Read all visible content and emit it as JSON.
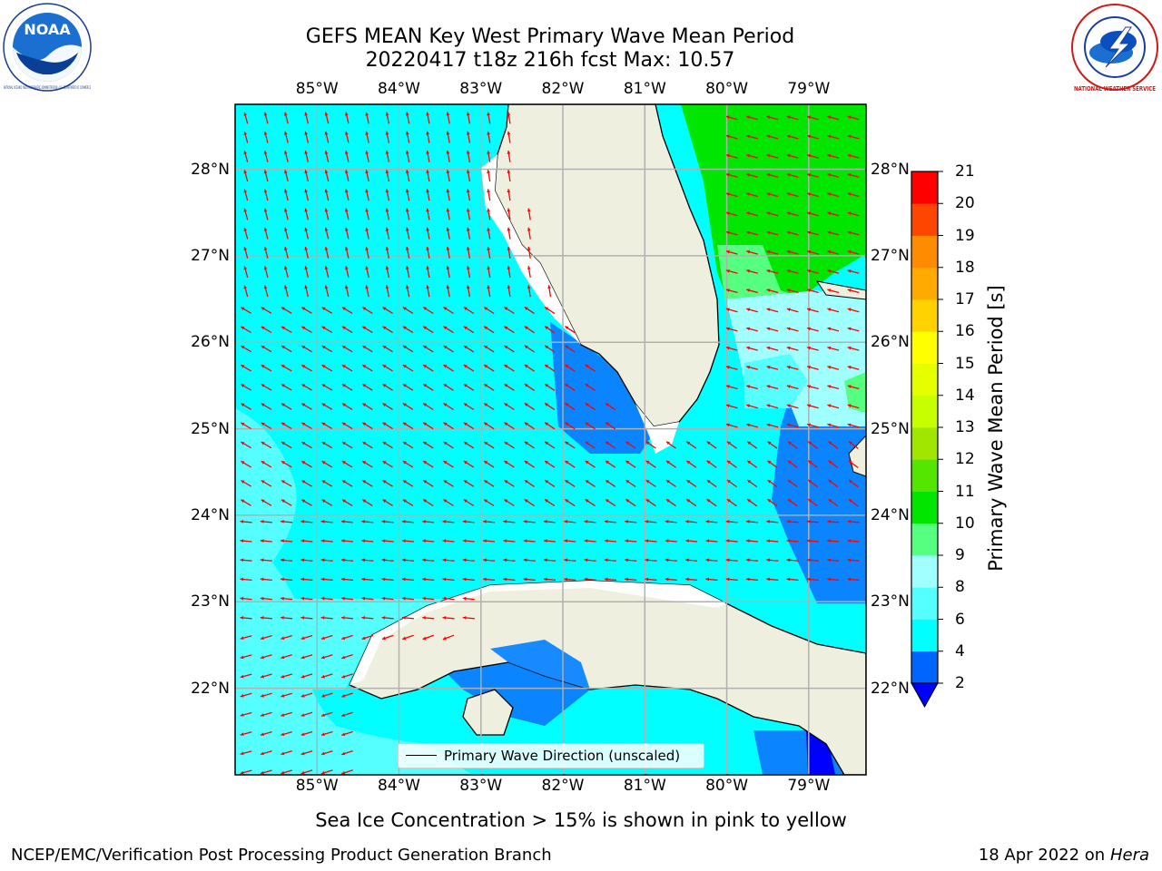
{
  "title_line1": "GEFS MEAN Key West Primary Wave Mean Period",
  "title_line2": "20220417 t18z 216h fcst   Max: 10.57",
  "logos": {
    "left": {
      "text": "NOAA",
      "ring_text": "NATIONAL OCEANIC AND ATMOSPHERIC ADMINISTRATION · U.S. DEPARTMENT OF COMMERCE",
      "icon": "noaa-logo"
    },
    "right": {
      "ring_text": "NATIONAL WEATHER SERVICE",
      "icon": "nws-logo"
    }
  },
  "map": {
    "lon_labels": [
      "85°W",
      "84°W",
      "83°W",
      "82°W",
      "81°W",
      "80°W",
      "79°W"
    ],
    "lat_labels": [
      "28°N",
      "27°N",
      "26°N",
      "25°N",
      "24°N",
      "23°N",
      "22°N"
    ],
    "lon_values": [
      -85,
      -84,
      -83,
      -82,
      -81,
      -80,
      -79
    ],
    "lat_values": [
      28,
      27,
      26,
      25,
      24,
      23,
      22
    ],
    "lon_range": [
      -86.0,
      -78.3
    ],
    "lat_range": [
      21.0,
      28.75
    ],
    "land_color": "#efefdf",
    "arrow_color": "#ff0000",
    "grid": true
  },
  "legend": {
    "label": "Primary Wave Direction (unscaled)",
    "placement": "lower-center"
  },
  "colorbar": {
    "label": "Primary Wave Mean Period [s]",
    "ticks": [
      "21",
      "20",
      "19",
      "18",
      "17",
      "16",
      "15",
      "14",
      "13",
      "12",
      "11",
      "10",
      "9",
      "8",
      "6",
      "4",
      "2"
    ],
    "levels": [
      2,
      4,
      6,
      8,
      9,
      10,
      11,
      12,
      13,
      14,
      15,
      16,
      17,
      18,
      19,
      20,
      21
    ],
    "colors": [
      "#0064ff",
      "#00ffff",
      "#55ffff",
      "#a0ffff",
      "#55ff80",
      "#00e600",
      "#55e600",
      "#a0e600",
      "#c8ff00",
      "#e6ff00",
      "#ffff00",
      "#ffd200",
      "#ffaa00",
      "#ff8c00",
      "#ff4600",
      "#ff0000"
    ],
    "under_color": "#0000ff"
  },
  "subnote": "Sea Ice Concentration > 15% is shown in pink to yellow",
  "footer_left": "NCEP/EMC/Verification Post Processing Product Generation Branch",
  "footer_right_date": "18 Apr 2022 on ",
  "footer_right_host": "Hera"
}
